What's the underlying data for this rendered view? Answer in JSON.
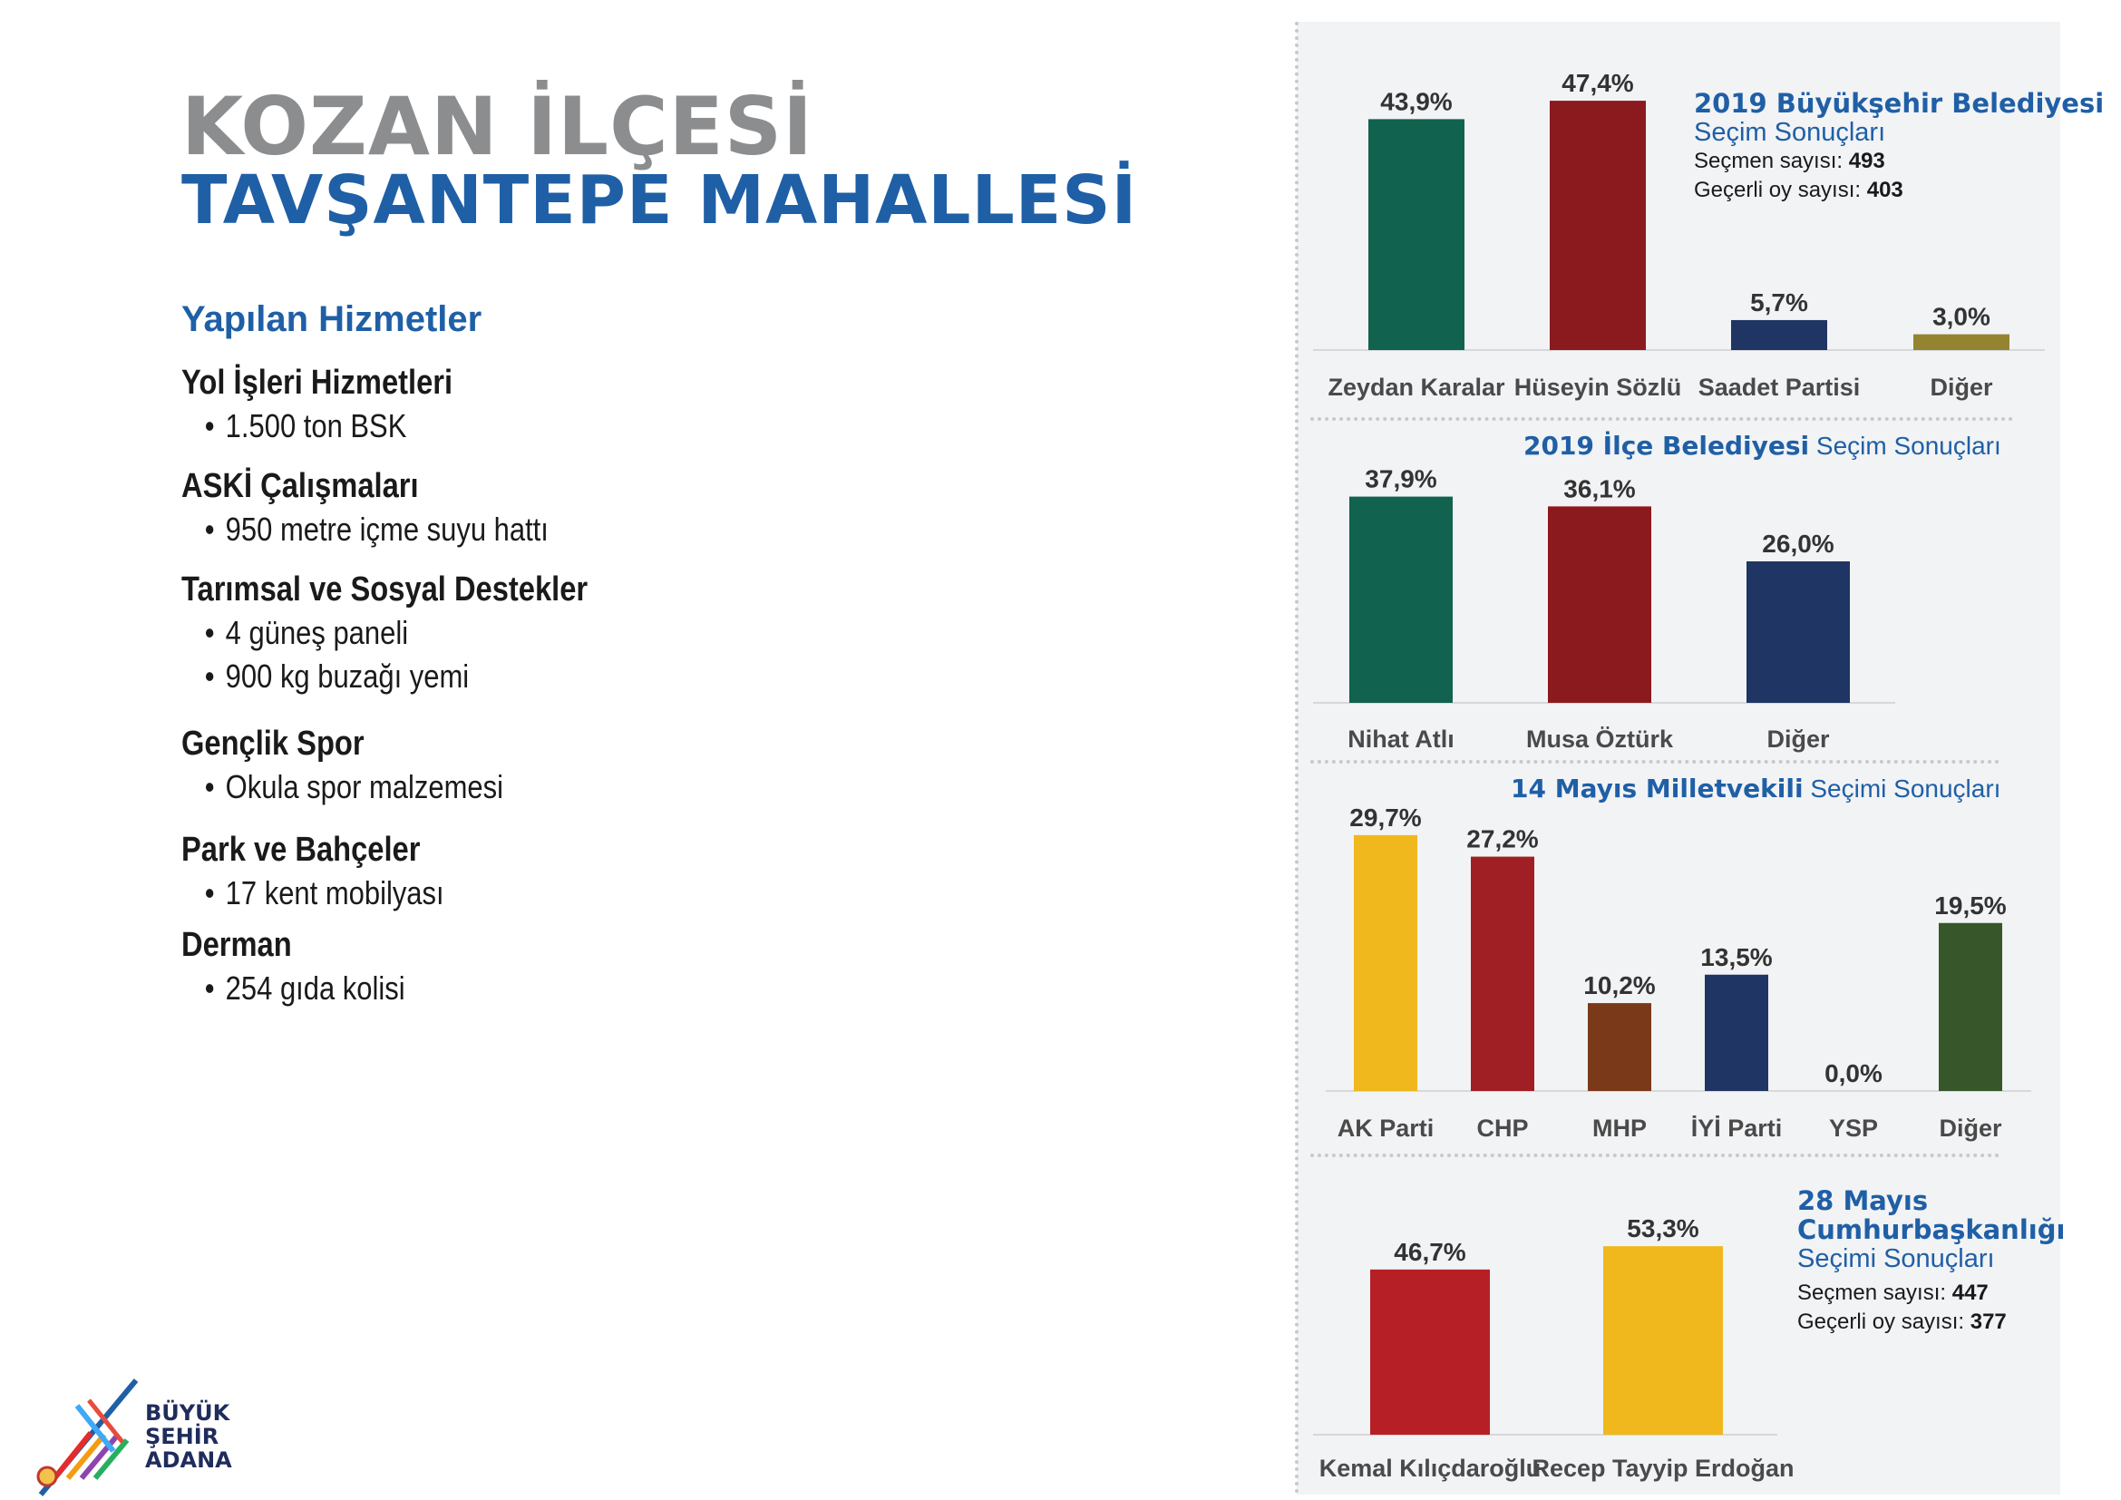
{
  "header": {
    "line1": "KOZAN İLÇESİ",
    "line2": "TAVŞANTEPE MAHALLESİ"
  },
  "services": {
    "heading": "Yapılan Hizmetler",
    "groups": [
      {
        "title": "Yol İşleri Hizmetleri",
        "items": [
          "1.500 ton BSK"
        ]
      },
      {
        "title": "ASKİ Çalışmaları",
        "items": [
          "950 metre içme suyu hattı"
        ]
      },
      {
        "title": "Tarımsal ve Sosyal Destekler",
        "items": [
          "4 güneş paneli",
          "900 kg buzağı yemi"
        ]
      },
      {
        "title": "Gençlik Spor",
        "items": [
          "Okula spor malzemesi"
        ]
      },
      {
        "title": "Park ve Bahçeler",
        "items": [
          "17 kent mobilyası"
        ]
      },
      {
        "title": "Derman",
        "items": [
          "254 gıda kolisi"
        ]
      }
    ]
  },
  "info": {
    "bsb_title": "2019 Büyükşehir Belediyesi",
    "bsb_sub": "Seçim Sonuçları",
    "bsb_voters_label": "Seçmen sayısı:",
    "bsb_voters": "493",
    "bsb_valid_label": "Geçerli oy sayısı:",
    "bsb_valid": "403",
    "ilce_title_bold": "2019 İlçe Belediyesi",
    "ilce_title_norm": "Seçim Sonuçları",
    "mv_title_bold": "14 Mayıs Milletvekili",
    "mv_title_norm": "Seçimi Sonuçları",
    "cb_title1": "28 Mayıs",
    "cb_title2": "Cumhurbaşkanlığı",
    "cb_sub": "Seçimi Sonuçları",
    "cb_voters_label": "Seçmen sayısı:",
    "cb_voters": "447",
    "cb_valid_label": "Geçerli oy sayısı:",
    "cb_valid": "377"
  },
  "logo": {
    "line1": "BÜYÜK",
    "line2": "ŞEHİR",
    "line3": "ADANA"
  },
  "colors": {
    "green": "#11624f",
    "darkred": "#8b1a1e",
    "navy": "#1f3563",
    "olive": "#948432",
    "yellow": "#f0b81c",
    "red": "#a01f24",
    "brown": "#7a3a1a",
    "darkgreen": "#37562a",
    "chpred": "#b71f26"
  },
  "chart_data": [
    {
      "type": "bar",
      "title": "2019 Büyükşehir Belediyesi Seçim Sonuçları",
      "categories": [
        "Zeydan Karalar",
        "Hüseyin Sözlü",
        "Saadet Partisi",
        "Diğer"
      ],
      "values": [
        43.9,
        47.4,
        5.7,
        3.0
      ],
      "labels": [
        "43,9%",
        "47,4%",
        "5,7%",
        "3,0%"
      ],
      "colors": [
        "#11624f",
        "#8b1a1e",
        "#1f3563",
        "#948432"
      ],
      "unit": "%"
    },
    {
      "type": "bar",
      "title": "2019 İlçe Belediyesi Seçim Sonuçları",
      "categories": [
        "Nihat Atlı",
        "Musa Öztürk",
        "Diğer"
      ],
      "values": [
        37.9,
        36.1,
        26.0
      ],
      "labels": [
        "37,9%",
        "36,1%",
        "26,0%"
      ],
      "colors": [
        "#11624f",
        "#8b1a1e",
        "#1f3563"
      ],
      "unit": "%"
    },
    {
      "type": "bar",
      "title": "14 Mayıs Milletvekili Seçimi Sonuçları",
      "categories": [
        "AK Parti",
        "CHP",
        "MHP",
        "İYİ Parti",
        "YSP",
        "Diğer"
      ],
      "values": [
        29.7,
        27.2,
        10.2,
        13.5,
        0.0,
        19.5
      ],
      "labels": [
        "29,7%",
        "27,2%",
        "10,2%",
        "13,5%",
        "0,0%",
        "19,5%"
      ],
      "colors": [
        "#f0b81c",
        "#a01f24",
        "#7a3a1a",
        "#1f3563",
        "#999999",
        "#37562a"
      ],
      "unit": "%"
    },
    {
      "type": "bar",
      "title": "28 Mayıs Cumhurbaşkanlığı Seçimi Sonuçları",
      "categories": [
        "Kemal Kılıçdaroğlu",
        "Recep Tayyip Erdoğan"
      ],
      "values": [
        46.7,
        53.3
      ],
      "labels": [
        "46,7%",
        "53,3%"
      ],
      "colors": [
        "#b71f26",
        "#f0b81c"
      ],
      "unit": "%"
    }
  ]
}
